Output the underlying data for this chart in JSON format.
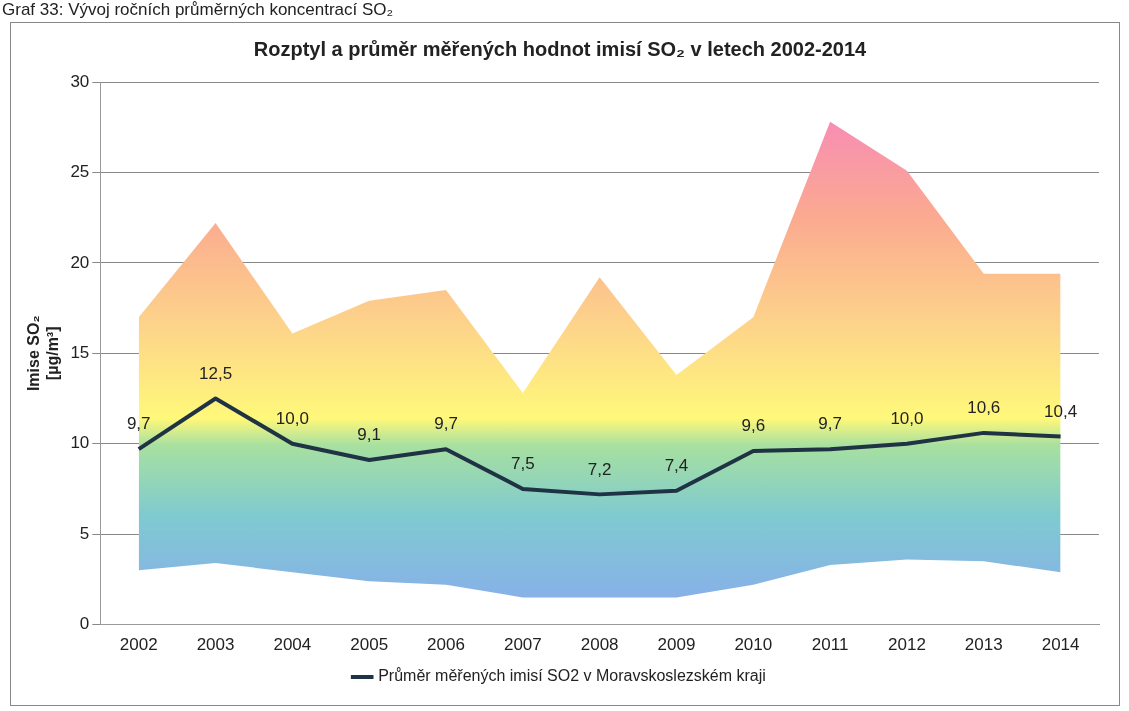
{
  "chart_data": {
    "type": "line",
    "title": "Rozptyl a průměr měřených hodnot imisí SO₂ v letech 2002-2014",
    "ylabel": "Imise SO₂ [µg/m³]",
    "annotations": [
      "Graf 33: Vývoj ročních průměrných koncentrací SO₂"
    ],
    "categories": [
      "2002",
      "2003",
      "2004",
      "2005",
      "2006",
      "2007",
      "2008",
      "2009",
      "2010",
      "2011",
      "2012",
      "2013",
      "2014"
    ],
    "series": [
      {
        "name": "Průměr měřených imisí SO2 v Moravskoslezském kraji",
        "color": "#1f3344",
        "values": [
          9.7,
          12.5,
          10.0,
          9.1,
          9.7,
          7.5,
          7.2,
          7.4,
          9.6,
          9.7,
          10.0,
          10.6,
          10.4
        ],
        "value_labels": [
          "9,7",
          "12,5",
          "10,0",
          "9,1",
          "9,7",
          "7,5",
          "7,2",
          "7,4",
          "9,6",
          "9,7",
          "10,0",
          "10,6",
          "10,4"
        ],
        "lower": [
          3.0,
          3.4,
          2.9,
          2.4,
          2.2,
          1.5,
          1.5,
          1.5,
          2.2,
          3.3,
          3.6,
          3.5,
          2.9
        ],
        "upper": [
          17.0,
          22.2,
          16.1,
          17.9,
          18.5,
          12.8,
          19.2,
          13.8,
          17.0,
          27.8,
          25.1,
          19.4,
          19.4
        ]
      }
    ],
    "ylim": [
      0,
      30
    ],
    "yticks": [
      0,
      5,
      10,
      15,
      20,
      25,
      30
    ],
    "grid": "y",
    "legend": "bottom",
    "marker": "none",
    "line_style": "solid"
  }
}
